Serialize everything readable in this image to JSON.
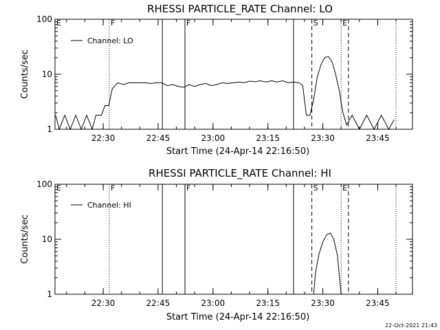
{
  "timestamp": "22-Oct-2021 21:43",
  "chart_data": [
    {
      "type": "line",
      "title": "RHESSI PARTICLE_RATE Channel: LO",
      "xlabel": "Start Time (24-Apr-14 22:16:50)",
      "ylabel": "Counts/sec",
      "yscale": "log",
      "ylim": [
        1,
        100
      ],
      "xlim": [
        "22:16:50",
        "23:54:30"
      ],
      "xticks": [
        "22:30",
        "22:45",
        "23:00",
        "23:15",
        "23:30",
        "23:45"
      ],
      "yticks": [
        "1",
        "10",
        "100"
      ],
      "legend": "Channel: LO",
      "legend_position": "top-left",
      "markers": [
        {
          "label": "E",
          "time": "22:16:50",
          "style": "none"
        },
        {
          "label": "F",
          "time": "22:31:40",
          "style": "dotted"
        },
        {
          "label": "",
          "time": "22:46:10",
          "style": "solid"
        },
        {
          "label": "F",
          "time": "22:52:20",
          "style": "solid"
        },
        {
          "label": "",
          "time": "23:22:00",
          "style": "solid"
        },
        {
          "label": "S",
          "time": "23:27:00",
          "style": "dashed"
        },
        {
          "label": "E",
          "time": "23:35:00",
          "style": "dotted"
        },
        {
          "label": "",
          "time": "23:37:00",
          "style": "dashed"
        },
        {
          "label": "",
          "time": "23:50:00",
          "style": "dotted"
        }
      ],
      "series": [
        {
          "x": [
            "22:17:00",
            "22:18:00",
            "22:19:30",
            "22:21:00",
            "22:22:30",
            "22:24:00",
            "22:25:30",
            "22:27:00",
            "22:28:00",
            "22:29:30",
            "22:30:30",
            "22:31:30",
            "22:32:30",
            "22:34:00",
            "22:35:30",
            "22:37:00",
            "22:38:30",
            "22:40:00",
            "22:41:30",
            "22:43:00",
            "22:44:30",
            "22:46:00",
            "22:47:30",
            "22:49:00",
            "22:50:30",
            "22:52:00",
            "22:53:30",
            "22:55:00",
            "22:56:30",
            "22:58:00",
            "22:59:30",
            "23:01:00",
            "23:02:30",
            "23:04:00",
            "23:05:30",
            "23:07:00",
            "23:08:30",
            "23:10:00",
            "23:11:30",
            "23:13:00",
            "23:14:30",
            "23:16:00",
            "23:17:30",
            "23:19:00",
            "23:20:30",
            "23:22:00",
            "23:23:30",
            "23:24:30",
            "23:25:30",
            "23:26:30",
            "23:27:30",
            "23:28:30",
            "23:29:30",
            "23:30:30",
            "23:31:30",
            "23:32:30",
            "23:33:30",
            "23:34:30",
            "23:35:30",
            "23:36:30",
            "23:38:00",
            "23:40:00",
            "23:42:00",
            "23:44:00",
            "23:46:00",
            "23:48:00",
            "23:49:30"
          ],
          "values": [
            1.8,
            1,
            1.8,
            1,
            1.8,
            1,
            1.8,
            1,
            1.8,
            1.8,
            2.7,
            2.7,
            5.5,
            7,
            6.5,
            7,
            7,
            7,
            7,
            6.8,
            7,
            7,
            6.2,
            6.5,
            6,
            5.8,
            6.5,
            6,
            6.5,
            6.8,
            6.2,
            6.5,
            7,
            6.8,
            7,
            7.2,
            7,
            7.5,
            7.3,
            7.6,
            7.2,
            7.6,
            7.2,
            7.6,
            7,
            7.2,
            7,
            6.3,
            1.8,
            1.8,
            3.5,
            9,
            15,
            20,
            21,
            17,
            10,
            5,
            2,
            1.2,
            1.8,
            1,
            1.8,
            1,
            1.8,
            1,
            1.5
          ]
        }
      ]
    },
    {
      "type": "line",
      "title": "RHESSI PARTICLE_RATE Channel: HI",
      "xlabel": "Start Time (24-Apr-14 22:16:50)",
      "ylabel": "Counts/sec",
      "yscale": "log",
      "ylim": [
        1,
        100
      ],
      "xlim": [
        "22:16:50",
        "23:54:30"
      ],
      "xticks": [
        "22:30",
        "22:45",
        "23:00",
        "23:15",
        "23:30",
        "23:45"
      ],
      "yticks": [
        "1",
        "10",
        "100"
      ],
      "legend": "Channel: HI",
      "legend_position": "top-left",
      "markers": [
        {
          "label": "E",
          "time": "22:16:50",
          "style": "none"
        },
        {
          "label": "F",
          "time": "22:31:40",
          "style": "dotted"
        },
        {
          "label": "",
          "time": "22:46:10",
          "style": "solid"
        },
        {
          "label": "F",
          "time": "22:52:20",
          "style": "solid"
        },
        {
          "label": "",
          "time": "23:22:00",
          "style": "solid"
        },
        {
          "label": "S",
          "time": "23:27:00",
          "style": "dashed"
        },
        {
          "label": "E",
          "time": "23:35:00",
          "style": "dotted"
        },
        {
          "label": "",
          "time": "23:37:00",
          "style": "dashed"
        },
        {
          "label": "",
          "time": "23:50:00",
          "style": "dotted"
        }
      ],
      "series": [
        {
          "x": [
            "23:27:30",
            "23:28:00",
            "23:29:00",
            "23:30:00",
            "23:31:00",
            "23:32:00",
            "23:33:00",
            "23:34:00",
            "23:34:30",
            "23:35:00"
          ],
          "values": [
            1,
            2.5,
            5.5,
            9,
            12,
            13,
            10,
            5,
            2.2,
            1
          ]
        }
      ]
    }
  ]
}
